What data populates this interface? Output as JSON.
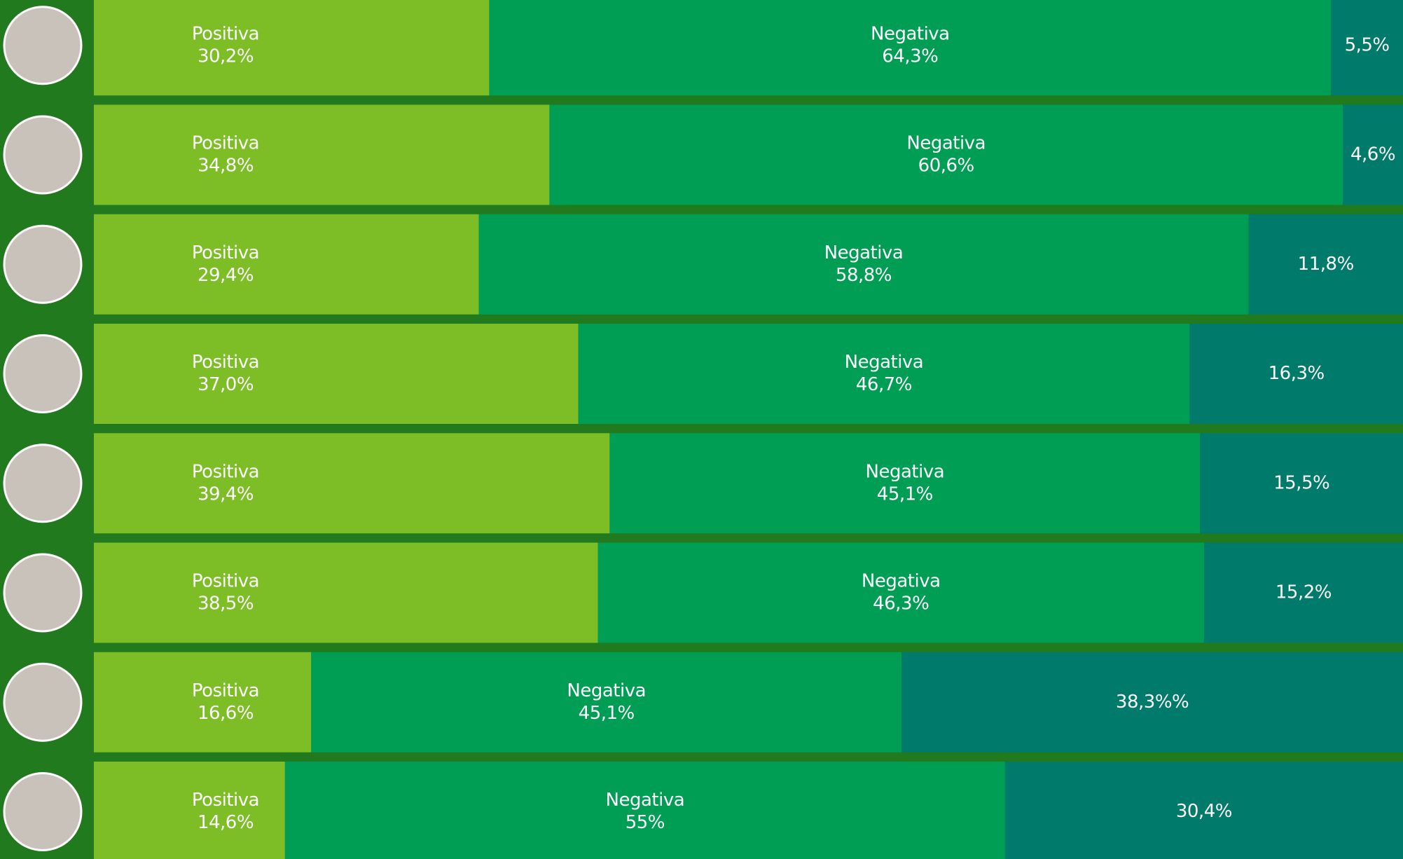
{
  "chart_data": {
    "type": "stacked-bar-horizontal",
    "categories": [
      null,
      null,
      null,
      null,
      null,
      null,
      null,
      null
    ],
    "xlim": [
      0,
      100
    ],
    "series": [
      {
        "name": "Positiva",
        "color": "#7dbd26",
        "values": [
          30.2,
          34.8,
          29.4,
          37.0,
          39.4,
          38.5,
          16.6,
          14.6
        ],
        "value_labels": [
          "30,2%",
          "34,8%",
          "29,4%",
          "37,0%",
          "39,4%",
          "38,5%",
          "16,6%",
          "14,6%"
        ]
      },
      {
        "name": "Negativa",
        "color": "#009e54",
        "values": [
          64.3,
          60.6,
          58.8,
          46.7,
          45.1,
          46.3,
          45.1,
          55
        ],
        "value_labels": [
          "64,3%",
          "60,6%",
          "58,8%",
          "46,7%",
          "45,1%",
          "46,3%",
          "45,1%",
          "55%"
        ]
      },
      {
        "color": "#007a6a",
        "values": [
          5.5,
          4.6,
          11.8,
          16.3,
          15.5,
          15.2,
          38.3,
          30.4
        ],
        "value_labels": [
          "5,5%",
          "4,6%",
          "11,8%",
          "16,3%",
          "15,5%",
          "15,2%",
          "38,3%%",
          "30,4%"
        ]
      }
    ]
  }
}
